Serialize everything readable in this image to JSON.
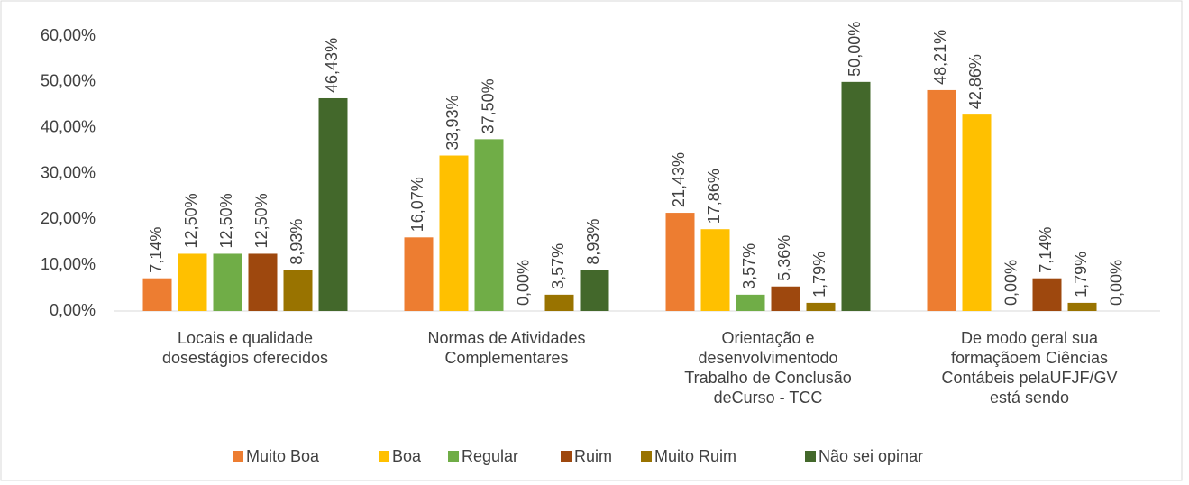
{
  "chart_data": {
    "type": "bar",
    "categories": [
      "Locais e qualidade\ndosestágios oferecidos",
      "Normas de Atividades\nComplementares",
      "Orientação e\ndesenvolvimentodo\nTrabalho de Conclusão\ndeCurso - TCC",
      "De modo geral sua\nformaçãoem Ciências\nContábeis pelaUFJF/GV\nestá sendo"
    ],
    "series": [
      {
        "name": "Muito Boa",
        "color": "#ED7D31",
        "values": [
          7.14,
          16.07,
          21.43,
          48.21
        ],
        "value_labels": [
          "7,14%",
          "16,07%",
          "21,43%",
          "48,21%"
        ]
      },
      {
        "name": "Boa",
        "color": "#FFC000",
        "values": [
          12.5,
          33.93,
          17.86,
          42.86
        ],
        "value_labels": [
          "12,50%",
          "33,93%",
          "17,86%",
          "42,86%"
        ]
      },
      {
        "name": "Regular",
        "color": "#70AD47",
        "values": [
          12.5,
          37.5,
          3.57,
          0
        ],
        "value_labels": [
          "12,50%",
          "37,50%",
          "3,57%",
          "0,00%"
        ]
      },
      {
        "name": "Ruim",
        "color": "#9E480E",
        "values": [
          12.5,
          0,
          5.36,
          7.14
        ],
        "value_labels": [
          "12,50%",
          "0,00%",
          "5,36%",
          "7,14%"
        ]
      },
      {
        "name": "Muito Ruim",
        "color": "#997300",
        "values": [
          8.93,
          3.57,
          1.79,
          1.79
        ],
        "value_labels": [
          "8,93%",
          "3,57%",
          "1,79%",
          "1,79%"
        ]
      },
      {
        "name": "Não sei opinar",
        "color": "#43682B",
        "values": [
          46.43,
          8.93,
          50,
          0
        ],
        "value_labels": [
          "46,43%",
          "8,93%",
          "50,00%",
          "0,00%"
        ]
      }
    ],
    "ylim": [
      0,
      60
    ],
    "yticks": [
      {
        "value": 0,
        "label": "0,00%"
      },
      {
        "value": 10,
        "label": "10,00%"
      },
      {
        "value": 20,
        "label": "20,00%"
      },
      {
        "value": 30,
        "label": "30,00%"
      },
      {
        "value": 40,
        "label": "40,00%"
      },
      {
        "value": 50,
        "label": "50,00%"
      },
      {
        "value": 60,
        "label": "60,00%"
      }
    ],
    "legend": "bottom"
  }
}
